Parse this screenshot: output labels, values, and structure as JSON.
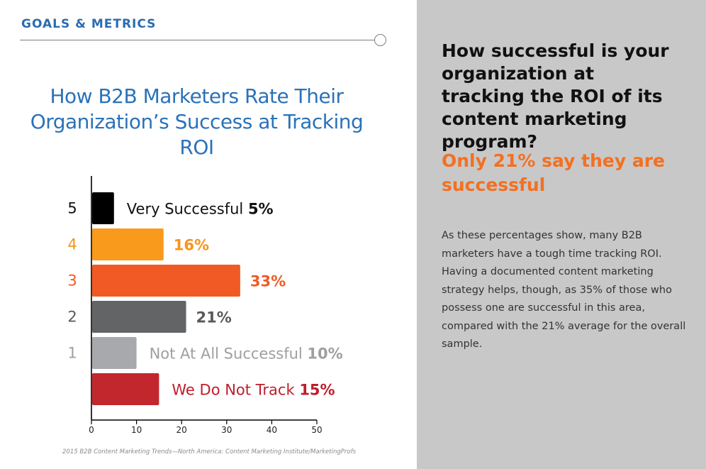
{
  "header": {
    "section_label": "GOALS & METRICS"
  },
  "chart": {
    "title": "How B2B Marketers Rate Their Organization’s Success at Tracking ROI",
    "source": "2015 B2B Content Marketing Trends—North America: Content Marketing Institute/MarketingProfs"
  },
  "chart_data": {
    "type": "bar",
    "orientation": "horizontal",
    "title": "How B2B Marketers Rate Their Organization’s Success at Tracking ROI",
    "xlim": [
      0,
      50
    ],
    "xticks": [
      0,
      10,
      20,
      30,
      40,
      50
    ],
    "grid": false,
    "bars": [
      {
        "rank": "5",
        "label": "Very Successful",
        "value": 5,
        "value_label": "5%",
        "color": "#000000",
        "label_color": "#111111",
        "rank_color": "#111111"
      },
      {
        "rank": "4",
        "label": "",
        "value": 16,
        "value_label": "16%",
        "color": "#f99a1c",
        "label_color": "#f7941d",
        "rank_color": "#f7941d"
      },
      {
        "rank": "3",
        "label": "",
        "value": 33,
        "value_label": "33%",
        "color": "#f15a24",
        "label_color": "#f15a24",
        "rank_color": "#f15a24"
      },
      {
        "rank": "2",
        "label": "",
        "value": 21,
        "value_label": "21%",
        "color": "#636466",
        "label_color": "#58595b",
        "rank_color": "#58595b"
      },
      {
        "rank": "1",
        "label": "Not At All Successful",
        "value": 10,
        "value_label": "10%",
        "color": "#a7a9ac",
        "label_color": "#9d9fa2",
        "rank_color": "#9d9fa2"
      },
      {
        "rank": "",
        "label": "We Do Not Track",
        "value": 15,
        "value_label": "15%",
        "color": "#c1272d",
        "label_color": "#be1e2d",
        "rank_color": "#be1e2d"
      }
    ]
  },
  "sidebar": {
    "question": "How successful is your organization at tracking the ROI of its content marketing program?",
    "answer": "Only 21% say they are successful",
    "body": "As these percentages show, many B2B marketers have a tough time tracking ROI. Having a documented content marketing strategy helps, though, as 35% of those who possess one are successful in this area, compared with the 21% average for the overall sample."
  },
  "colors": {
    "sidebar_bg": "#c8c8c9",
    "accent_blue": "#2a72b8",
    "accent_orange": "#f37021"
  }
}
